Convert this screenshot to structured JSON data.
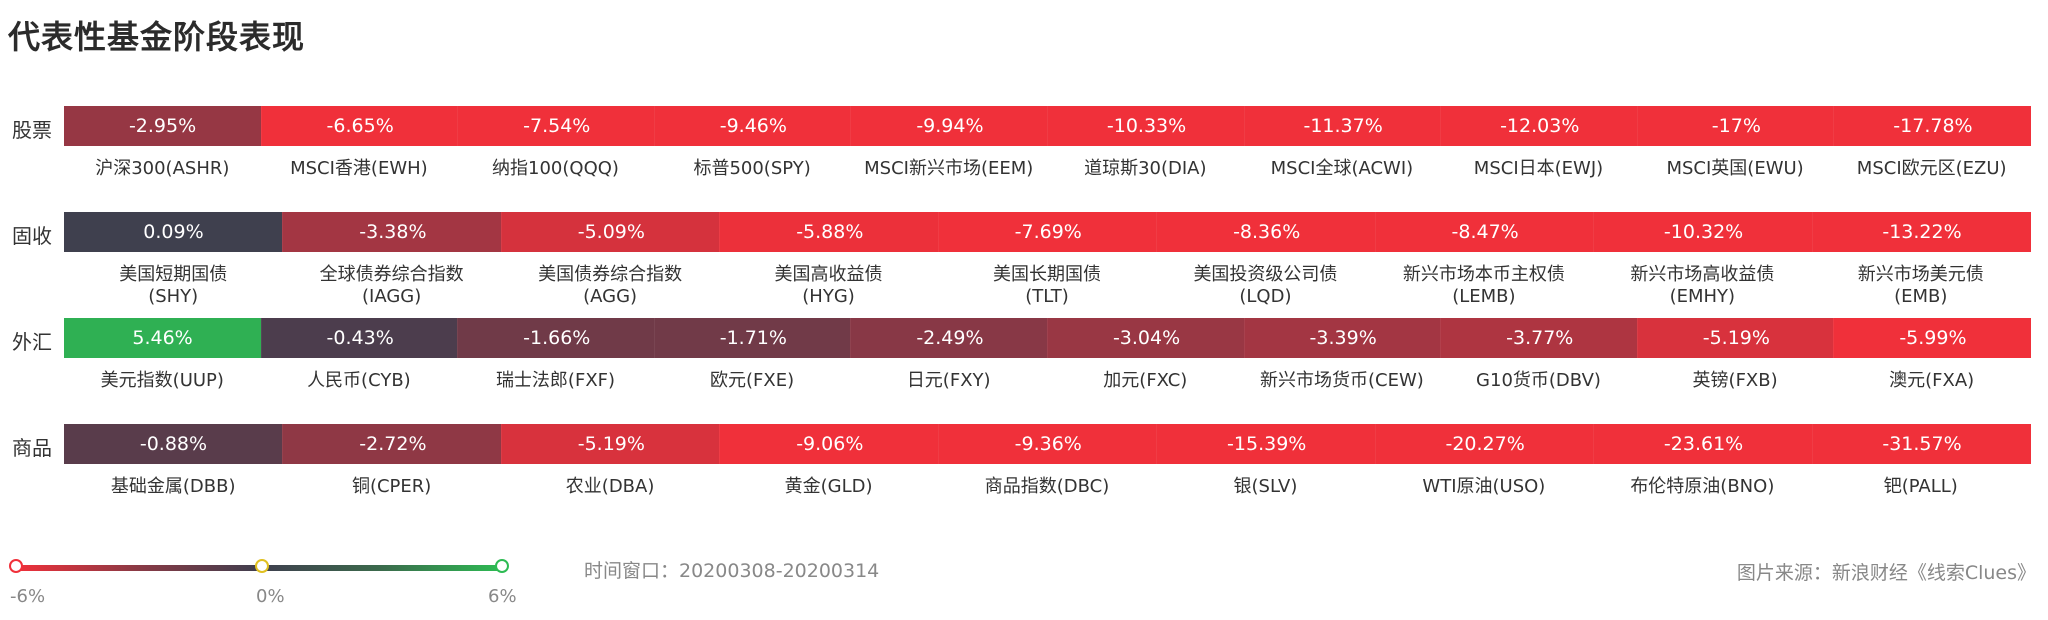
{
  "title": "代表性基金阶段表现",
  "chart_data": {
    "type": "heatmap",
    "title": "代表性基金阶段表现",
    "rows": [
      {
        "label": "股票",
        "cells": [
          {
            "name": "沪深300(ASHR)",
            "value": -2.95,
            "text": "-2.95%"
          },
          {
            "name": "MSCI香港(EWH)",
            "value": -6.65,
            "text": "-6.65%"
          },
          {
            "name": "纳指100(QQQ)",
            "value": -7.54,
            "text": "-7.54%"
          },
          {
            "name": "标普500(SPY)",
            "value": -9.46,
            "text": "-9.46%"
          },
          {
            "name": "MSCI新兴市场(EEM)",
            "value": -9.94,
            "text": "-9.94%"
          },
          {
            "name": "道琼斯30(DIA)",
            "value": -10.33,
            "text": "-10.33%"
          },
          {
            "name": "MSCI全球(ACWI)",
            "value": -11.37,
            "text": "-11.37%"
          },
          {
            "name": "MSCI日本(EWJ)",
            "value": -12.03,
            "text": "-12.03%"
          },
          {
            "name": "MSCI英国(EWU)",
            "value": -17,
            "text": "-17%"
          },
          {
            "name": "MSCI欧元区(EZU)",
            "value": -17.78,
            "text": "-17.78%"
          }
        ]
      },
      {
        "label": "固收",
        "cells": [
          {
            "name": "美国短期国债\n(SHY)",
            "value": 0.09,
            "text": "0.09%"
          },
          {
            "name": "全球债券综合指数\n(IAGG)",
            "value": -3.38,
            "text": "-3.38%"
          },
          {
            "name": "美国债券综合指数\n(AGG)",
            "value": -5.09,
            "text": "-5.09%"
          },
          {
            "name": "美国高收益债\n(HYG)",
            "value": -5.88,
            "text": "-5.88%"
          },
          {
            "name": "美国长期国债\n(TLT)",
            "value": -7.69,
            "text": "-7.69%"
          },
          {
            "name": "美国投资级公司债\n(LQD)",
            "value": -8.36,
            "text": "-8.36%"
          },
          {
            "name": "新兴市场本币主权债\n(LEMB)",
            "value": -8.47,
            "text": "-8.47%"
          },
          {
            "name": "新兴市场高收益债\n(EMHY)",
            "value": -10.32,
            "text": "-10.32%"
          },
          {
            "name": "新兴市场美元债\n(EMB)",
            "value": -13.22,
            "text": "-13.22%"
          }
        ]
      },
      {
        "label": "外汇",
        "cells": [
          {
            "name": "美元指数(UUP)",
            "value": 5.46,
            "text": "5.46%"
          },
          {
            "name": "人民币(CYB)",
            "value": -0.43,
            "text": "-0.43%"
          },
          {
            "name": "瑞士法郎(FXF)",
            "value": -1.66,
            "text": "-1.66%"
          },
          {
            "name": "欧元(FXE)",
            "value": -1.71,
            "text": "-1.71%"
          },
          {
            "name": "日元(FXY)",
            "value": -2.49,
            "text": "-2.49%"
          },
          {
            "name": "加元(FXC)",
            "value": -3.04,
            "text": "-3.04%"
          },
          {
            "name": "新兴市场货币(CEW)",
            "value": -3.39,
            "text": "-3.39%"
          },
          {
            "name": "G10货币(DBV)",
            "value": -3.77,
            "text": "-3.77%"
          },
          {
            "name": "英镑(FXB)",
            "value": -5.19,
            "text": "-5.19%"
          },
          {
            "name": "澳元(FXA)",
            "value": -5.99,
            "text": "-5.99%"
          }
        ]
      },
      {
        "label": "商品",
        "cells": [
          {
            "name": "基础金属(DBB)",
            "value": -0.88,
            "text": "-0.88%"
          },
          {
            "name": "铜(CPER)",
            "value": -2.72,
            "text": "-2.72%"
          },
          {
            "name": "农业(DBA)",
            "value": -5.19,
            "text": "-5.19%"
          },
          {
            "name": "黄金(GLD)",
            "value": -9.06,
            "text": "-9.06%"
          },
          {
            "name": "商品指数(DBC)",
            "value": -9.36,
            "text": "-9.36%"
          },
          {
            "name": "银(SLV)",
            "value": -15.39,
            "text": "-15.39%"
          },
          {
            "name": "WTI原油(USO)",
            "value": -20.27,
            "text": "-20.27%"
          },
          {
            "name": "布伦特原油(BNO)",
            "value": -23.61,
            "text": "-23.61%"
          },
          {
            "name": "钯(PALL)",
            "value": -31.57,
            "text": "-31.57%"
          }
        ]
      }
    ],
    "color_scale": {
      "min": -6,
      "mid": 0,
      "max": 6,
      "min_label": "-6%",
      "mid_label": "0%",
      "max_label": "6%",
      "min_color": "#f0303a",
      "mid_color": "#3f3e4e",
      "max_color": "#2dbb53"
    }
  },
  "footer": {
    "window": "时间窗口：20200308-20200314",
    "source": "图片来源：新浪财经《线索Clues》"
  }
}
